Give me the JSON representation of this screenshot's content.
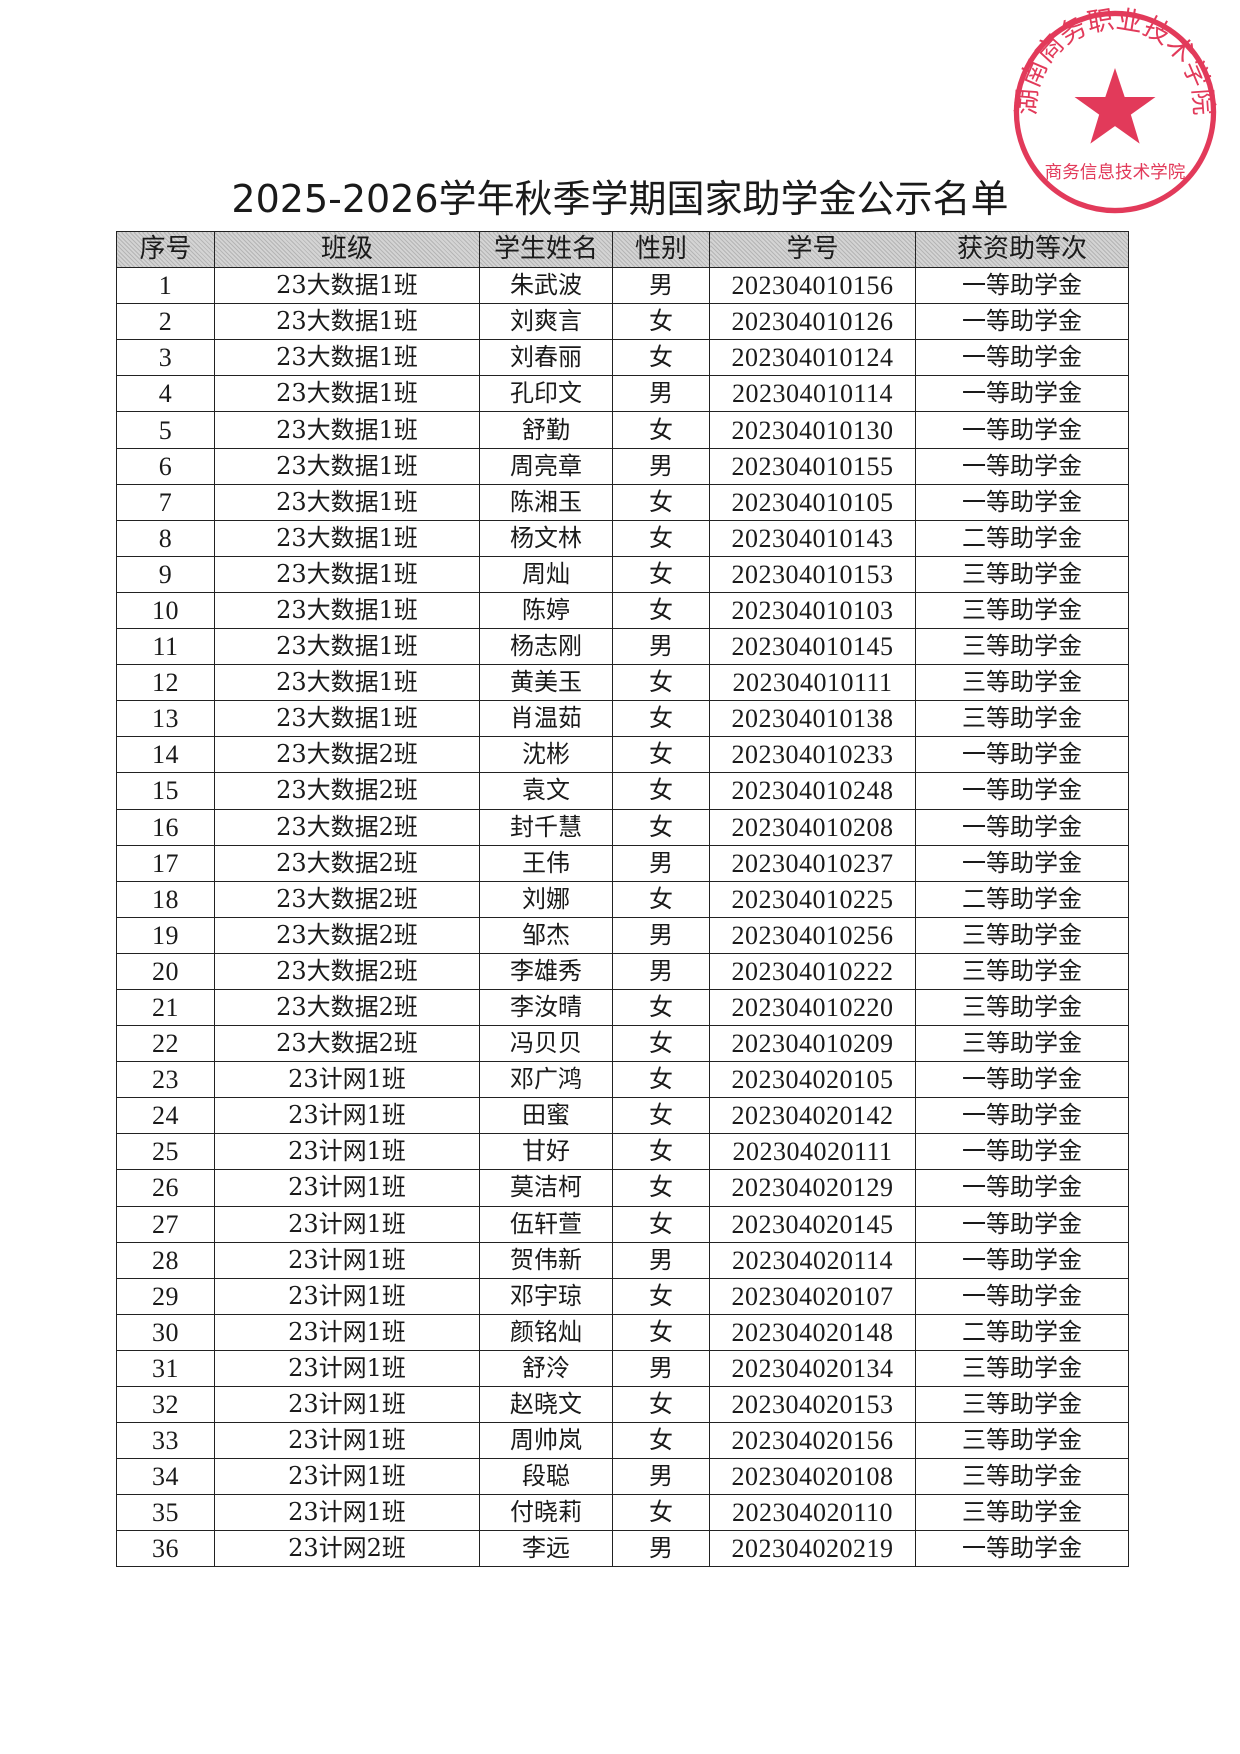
{
  "title": "2025-2026学年秋季学期国家助学金公示名单",
  "stamp": {
    "text": "湖南商务职业技术学院",
    "sub": "商务信息技术学院",
    "color": "#e23a5a"
  },
  "table": {
    "headers": [
      "序号",
      "班级",
      "学生姓名",
      "性别",
      "学号",
      "获资助等次"
    ],
    "rows": [
      [
        "1",
        "23大数据1班",
        "朱武波",
        "男",
        "202304010156",
        "一等助学金"
      ],
      [
        "2",
        "23大数据1班",
        "刘爽言",
        "女",
        "202304010126",
        "一等助学金"
      ],
      [
        "3",
        "23大数据1班",
        "刘春丽",
        "女",
        "202304010124",
        "一等助学金"
      ],
      [
        "4",
        "23大数据1班",
        "孔印文",
        "男",
        "202304010114",
        "一等助学金"
      ],
      [
        "5",
        "23大数据1班",
        "舒勤",
        "女",
        "202304010130",
        "一等助学金"
      ],
      [
        "6",
        "23大数据1班",
        "周亮章",
        "男",
        "202304010155",
        "一等助学金"
      ],
      [
        "7",
        "23大数据1班",
        "陈湘玉",
        "女",
        "202304010105",
        "一等助学金"
      ],
      [
        "8",
        "23大数据1班",
        "杨文林",
        "女",
        "202304010143",
        "二等助学金"
      ],
      [
        "9",
        "23大数据1班",
        "周灿",
        "女",
        "202304010153",
        "三等助学金"
      ],
      [
        "10",
        "23大数据1班",
        "陈婷",
        "女",
        "202304010103",
        "三等助学金"
      ],
      [
        "11",
        "23大数据1班",
        "杨志刚",
        "男",
        "202304010145",
        "三等助学金"
      ],
      [
        "12",
        "23大数据1班",
        "黄美玉",
        "女",
        "202304010111",
        "三等助学金"
      ],
      [
        "13",
        "23大数据1班",
        "肖温茹",
        "女",
        "202304010138",
        "三等助学金"
      ],
      [
        "14",
        "23大数据2班",
        "沈彬",
        "女",
        "202304010233",
        "一等助学金"
      ],
      [
        "15",
        "23大数据2班",
        "袁文",
        "女",
        "202304010248",
        "一等助学金"
      ],
      [
        "16",
        "23大数据2班",
        "封千慧",
        "女",
        "202304010208",
        "一等助学金"
      ],
      [
        "17",
        "23大数据2班",
        "王伟",
        "男",
        "202304010237",
        "一等助学金"
      ],
      [
        "18",
        "23大数据2班",
        "刘娜",
        "女",
        "202304010225",
        "二等助学金"
      ],
      [
        "19",
        "23大数据2班",
        "邹杰",
        "男",
        "202304010256",
        "三等助学金"
      ],
      [
        "20",
        "23大数据2班",
        "李雄秀",
        "男",
        "202304010222",
        "三等助学金"
      ],
      [
        "21",
        "23大数据2班",
        "李汝晴",
        "女",
        "202304010220",
        "三等助学金"
      ],
      [
        "22",
        "23大数据2班",
        "冯贝贝",
        "女",
        "202304010209",
        "三等助学金"
      ],
      [
        "23",
        "23计网1班",
        "邓广鸿",
        "女",
        "202304020105",
        "一等助学金"
      ],
      [
        "24",
        "23计网1班",
        "田蜜",
        "女",
        "202304020142",
        "一等助学金"
      ],
      [
        "25",
        "23计网1班",
        "甘好",
        "女",
        "202304020111",
        "一等助学金"
      ],
      [
        "26",
        "23计网1班",
        "莫洁柯",
        "女",
        "202304020129",
        "一等助学金"
      ],
      [
        "27",
        "23计网1班",
        "伍轩萱",
        "女",
        "202304020145",
        "一等助学金"
      ],
      [
        "28",
        "23计网1班",
        "贺伟新",
        "男",
        "202304020114",
        "一等助学金"
      ],
      [
        "29",
        "23计网1班",
        "邓宇琼",
        "女",
        "202304020107",
        "一等助学金"
      ],
      [
        "30",
        "23计网1班",
        "颜铭灿",
        "女",
        "202304020148",
        "二等助学金"
      ],
      [
        "31",
        "23计网1班",
        "舒泠",
        "男",
        "202304020134",
        "三等助学金"
      ],
      [
        "32",
        "23计网1班",
        "赵晓文",
        "女",
        "202304020153",
        "三等助学金"
      ],
      [
        "33",
        "23计网1班",
        "周帅岚",
        "女",
        "202304020156",
        "三等助学金"
      ],
      [
        "34",
        "23计网1班",
        "段聪",
        "男",
        "202304020108",
        "三等助学金"
      ],
      [
        "35",
        "23计网1班",
        "付晓莉",
        "女",
        "202304020110",
        "三等助学金"
      ],
      [
        "36",
        "23计网2班",
        "李远",
        "男",
        "202304020219",
        "一等助学金"
      ]
    ]
  }
}
